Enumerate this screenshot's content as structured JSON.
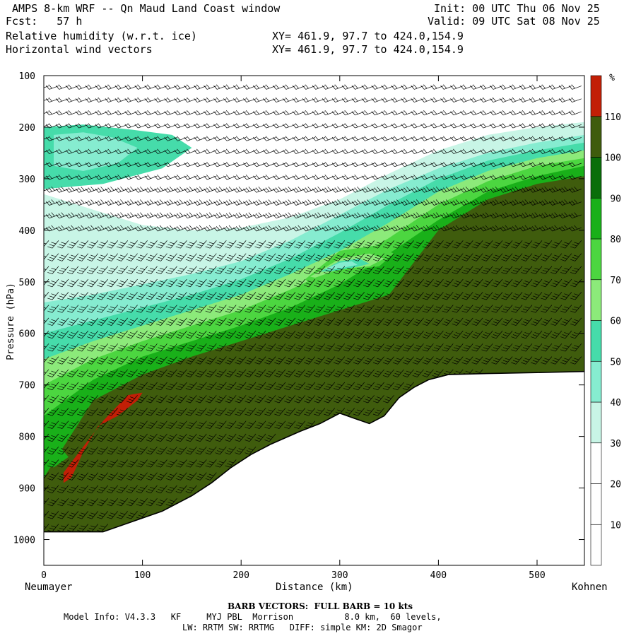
{
  "header": {
    "title": "AMPS 8-km WRF -- Qn Maud Land Coast window",
    "init": "Init: 00 UTC Thu 06 Nov 25",
    "fcst": "Fcst:   57 h",
    "valid": "Valid: 09 UTC Sat 08 Nov 25",
    "field1": "Relative humidity (w.r.t. ice)",
    "field2": "Horizontal wind vectors",
    "xy1": "XY= 461.9, 97.7 to 424.0,154.9",
    "xy2": "XY= 461.9, 97.7 to 424.0,154.9"
  },
  "axis": {
    "ylabel": "Pressure (hPa)",
    "xlabel": "Distance (km)",
    "left_endpoint": "Neumayer",
    "right_endpoint": "Kohnen"
  },
  "footer": {
    "barb_note": "BARB VECTORS:  FULL BARB = 10 kts",
    "model_info": "Model Info: V4.3.3   KF     MYJ PBL  Morrison          8.0 km,  60 levels,",
    "physics": "LW: RRTM SW: RRTMG   DIFF: simple KM: 2D Smagor"
  },
  "colorbar": {
    "unit": "%",
    "levels": [
      10,
      20,
      30,
      40,
      50,
      60,
      70,
      80,
      90,
      100,
      110
    ],
    "colors": [
      "#ffffff",
      "#ffffff",
      "#ffffff",
      "#c8f5e6",
      "#86ecd0",
      "#46dcaa",
      "#8cea7a",
      "#4cd640",
      "#19b019",
      "#0a6e0a",
      "#3f5c0d",
      "#c21f06"
    ]
  },
  "chart_data": {
    "type": "heatmap",
    "title": "Relative humidity (w.r.t. ice)",
    "xlabel": "Distance (km)",
    "ylabel": "Pressure (hPa)",
    "xlim": [
      0,
      548
    ],
    "ylim": [
      1050,
      100
    ],
    "xticks": [
      0,
      100,
      200,
      300,
      400,
      500
    ],
    "yticks": [
      100,
      200,
      300,
      400,
      500,
      600,
      700,
      800,
      900,
      1000
    ],
    "legend": "right colorbar",
    "terrain": {
      "x": [
        0,
        30,
        60,
        90,
        120,
        150,
        170,
        190,
        210,
        230,
        260,
        280,
        300,
        315,
        330,
        345,
        360,
        375,
        390,
        410,
        450,
        500,
        548
      ],
      "p": [
        985,
        985,
        985,
        965,
        945,
        915,
        890,
        860,
        835,
        815,
        790,
        775,
        755,
        765,
        775,
        760,
        725,
        705,
        690,
        680,
        678,
        676,
        674
      ]
    },
    "rh_bands": [
      {
        "level": 30,
        "top": {
          "x": [
            0,
            50,
            100,
            150,
            200,
            250,
            300,
            350,
            400,
            450,
            500,
            548
          ],
          "p": [
            330,
            360,
            390,
            400,
            395,
            375,
            340,
            290,
            245,
            215,
            200,
            190
          ]
        }
      },
      {
        "level": 40,
        "top": {
          "x": [
            0,
            50,
            100,
            150,
            200,
            250,
            300,
            350,
            400,
            450,
            500,
            548
          ],
          "p": [
            540,
            525,
            505,
            485,
            460,
            420,
            370,
            320,
            280,
            250,
            230,
            215
          ]
        }
      },
      {
        "level": 50,
        "top": {
          "x": [
            0,
            50,
            100,
            150,
            200,
            250,
            300,
            350,
            400,
            450,
            500,
            548
          ],
          "p": [
            600,
            575,
            550,
            525,
            495,
            455,
            405,
            350,
            300,
            265,
            245,
            230
          ]
        }
      },
      {
        "level": 60,
        "top": {
          "x": [
            0,
            50,
            100,
            150,
            200,
            250,
            300,
            350,
            400,
            450,
            500,
            548
          ],
          "p": [
            650,
            615,
            585,
            555,
            525,
            485,
            440,
            385,
            325,
            285,
            260,
            245
          ]
        }
      },
      {
        "level": 70,
        "top": {
          "x": [
            0,
            50,
            100,
            150,
            200,
            250,
            300,
            350,
            400,
            450,
            500,
            548
          ],
          "p": [
            700,
            650,
            615,
            585,
            555,
            515,
            470,
            415,
            350,
            305,
            275,
            260
          ]
        }
      },
      {
        "level": 80,
        "top": {
          "x": [
            0,
            50,
            100,
            150,
            200,
            250,
            300,
            350,
            400,
            450,
            500,
            548
          ],
          "p": [
            760,
            690,
            645,
            615,
            585,
            550,
            505,
            445,
            380,
            325,
            295,
            275
          ]
        }
      },
      {
        "level": 100,
        "top": {
          "x": [
            0,
            50,
            100,
            150,
            200,
            250,
            300,
            350,
            400,
            450,
            500,
            548
          ],
          "p": [
            880,
            730,
            680,
            645,
            615,
            585,
            555,
            525,
            400,
            340,
            310,
            295
          ]
        }
      }
    ],
    "rh_patches": [
      {
        "level": 70,
        "x": [
          265,
          300,
          335,
          355,
          340,
          300,
          268
        ],
        "p": [
          495,
          440,
          430,
          445,
          470,
          480,
          500
        ]
      },
      {
        "level": 60,
        "x": [
          270,
          300,
          330,
          345,
          330,
          300,
          275
        ],
        "p": [
          490,
          455,
          445,
          455,
          470,
          475,
          492
        ]
      },
      {
        "level": 50,
        "x": [
          280,
          300,
          320,
          330,
          315,
          290
        ],
        "p": [
          480,
          460,
          455,
          465,
          472,
          480
        ]
      },
      {
        "level": 40,
        "x": [
          285,
          300,
          312,
          318,
          305,
          290
        ],
        "p": [
          475,
          463,
          460,
          467,
          472,
          477
        ]
      },
      {
        "level": 50,
        "x": [
          0,
          40,
          90,
          130,
          150,
          120,
          60,
          0
        ],
        "p": [
          200,
          195,
          205,
          215,
          240,
          280,
          310,
          320
        ]
      },
      {
        "level": 40,
        "x": [
          10,
          40,
          70,
          95,
          75,
          40,
          10
        ],
        "p": [
          215,
          210,
          220,
          240,
          270,
          285,
          275
        ]
      },
      {
        "level": 80,
        "x": [
          0,
          10,
          25,
          10,
          0
        ],
        "p": [
          820,
          805,
          840,
          860,
          855
        ]
      },
      {
        "level": 110,
        "x": [
          20,
          40,
          60,
          85,
          100,
          95,
          75,
          55,
          40,
          28,
          20
        ],
        "p": [
          870,
          820,
          770,
          720,
          715,
          730,
          760,
          780,
          830,
          880,
          890
        ]
      }
    ],
    "wind_barbs": {
      "speed_scale": "full barb = 10 kts",
      "columns_x": [
        5,
        15,
        25,
        35,
        45,
        55,
        65,
        75,
        85,
        95,
        105,
        115,
        125,
        135,
        145,
        155,
        165,
        175,
        185,
        195,
        205,
        215,
        225,
        235,
        245,
        255,
        265,
        275,
        285,
        295,
        305,
        315,
        325,
        335,
        345,
        355,
        365,
        375,
        385,
        395,
        405,
        415,
        425,
        435,
        445,
        455,
        465,
        475,
        485,
        495,
        505,
        515,
        525,
        535,
        545
      ],
      "levels_p": [
        120,
        145,
        170,
        195,
        220,
        245,
        270,
        295,
        320,
        345,
        370,
        395,
        420,
        445,
        470,
        495,
        520,
        545,
        570,
        595,
        620,
        645,
        670,
        695,
        720,
        745,
        770,
        795,
        820,
        845,
        870,
        895,
        920,
        945,
        970
      ]
    }
  }
}
